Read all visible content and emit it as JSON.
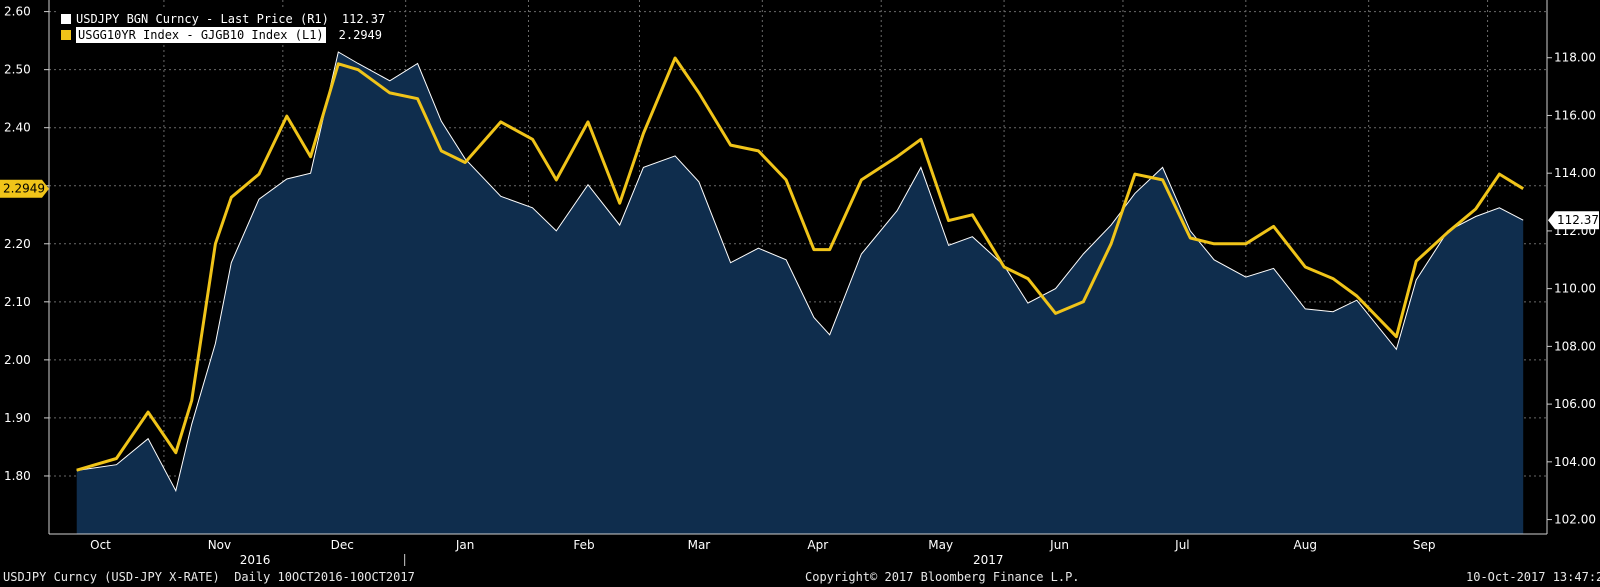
{
  "legend": {
    "items": [
      {
        "label": "USDJPY BGN Curncy - Last Price (R1)",
        "value": "112.37",
        "color": "#ffffff"
      },
      {
        "label": "USGG10YR Index - GJGB10 Index (L1)",
        "value": "2.2949",
        "color": "#f0c419"
      }
    ]
  },
  "footer": {
    "left": "USDJPY Curncy (USD-JPY X-RATE)  Daily 10OCT2016-10OCT2017",
    "center": "Copyright© 2017 Bloomberg Finance L.P.",
    "right": "10-Oct-2017 13:47:20"
  },
  "chart_data": {
    "type": "line",
    "x_axis": {
      "months": [
        "Oct",
        "Nov",
        "Dec",
        "Jan",
        "Feb",
        "Mar",
        "Apr",
        "May",
        "Jun",
        "Jul",
        "Aug",
        "Sep"
      ],
      "years": [
        "2016",
        "2017"
      ]
    },
    "y_left": {
      "ticks": [
        "1.80",
        "1.90",
        "2.00",
        "2.10",
        "2.20",
        "2.30",
        "2.40",
        "2.50",
        "2.60"
      ],
      "range": [
        1.7,
        2.62
      ]
    },
    "y_right": {
      "ticks": [
        "102.00",
        "104.00",
        "106.00",
        "108.00",
        "110.00",
        "112.00",
        "114.00",
        "116.00",
        "118.00"
      ],
      "range": [
        101.5,
        120
      ]
    },
    "left_marker": "2.2949",
    "right_marker": "112.37",
    "colors": {
      "usdjpy_line": "#ffffff",
      "usdjpy_fill": "#0f2d4d",
      "spread_line": "#f0c419",
      "grid": "#6a6a6a",
      "marker_right_bg": "#ffffff",
      "marker_left_bg": "#f0c419"
    },
    "series": [
      {
        "name": "USDJPY BGN Curncy - Last Price (R1)",
        "axis": "right",
        "points": [
          [
            "2016-10-10",
            103.7
          ],
          [
            "2016-10-20",
            103.9
          ],
          [
            "2016-10-28",
            104.8
          ],
          [
            "2016-11-04",
            103.0
          ],
          [
            "2016-11-08",
            105.3
          ],
          [
            "2016-11-14",
            108.1
          ],
          [
            "2016-11-18",
            110.9
          ],
          [
            "2016-11-25",
            113.1
          ],
          [
            "2016-12-02",
            113.8
          ],
          [
            "2016-12-08",
            114.0
          ],
          [
            "2016-12-15",
            118.2
          ],
          [
            "2016-12-20",
            117.8
          ],
          [
            "2016-12-28",
            117.2
          ],
          [
            "2017-01-04",
            117.8
          ],
          [
            "2017-01-10",
            115.8
          ],
          [
            "2017-01-16",
            114.5
          ],
          [
            "2017-01-25",
            113.2
          ],
          [
            "2017-02-02",
            112.8
          ],
          [
            "2017-02-08",
            112.0
          ],
          [
            "2017-02-16",
            113.6
          ],
          [
            "2017-02-24",
            112.2
          ],
          [
            "2017-03-02",
            114.2
          ],
          [
            "2017-03-10",
            114.6
          ],
          [
            "2017-03-16",
            113.7
          ],
          [
            "2017-03-24",
            110.9
          ],
          [
            "2017-03-31",
            111.4
          ],
          [
            "2017-04-07",
            111.0
          ],
          [
            "2017-04-14",
            109.0
          ],
          [
            "2017-04-18",
            108.4
          ],
          [
            "2017-04-26",
            111.2
          ],
          [
            "2017-05-05",
            112.7
          ],
          [
            "2017-05-11",
            114.2
          ],
          [
            "2017-05-18",
            111.5
          ],
          [
            "2017-05-24",
            111.8
          ],
          [
            "2017-06-01",
            110.8
          ],
          [
            "2017-06-07",
            109.5
          ],
          [
            "2017-06-14",
            110.0
          ],
          [
            "2017-06-21",
            111.2
          ],
          [
            "2017-06-28",
            112.2
          ],
          [
            "2017-07-04",
            113.3
          ],
          [
            "2017-07-11",
            114.2
          ],
          [
            "2017-07-18",
            112.0
          ],
          [
            "2017-07-24",
            111.0
          ],
          [
            "2017-08-01",
            110.4
          ],
          [
            "2017-08-08",
            110.7
          ],
          [
            "2017-08-16",
            109.3
          ],
          [
            "2017-08-23",
            109.2
          ],
          [
            "2017-08-29",
            109.6
          ],
          [
            "2017-09-08",
            107.9
          ],
          [
            "2017-09-13",
            110.3
          ],
          [
            "2017-09-21",
            112.0
          ],
          [
            "2017-09-28",
            112.5
          ],
          [
            "2017-10-04",
            112.8
          ],
          [
            "2017-10-10",
            112.37
          ]
        ]
      },
      {
        "name": "USGG10YR Index - GJGB10 Index (L1)",
        "axis": "left",
        "points": [
          [
            "2016-10-10",
            1.81
          ],
          [
            "2016-10-20",
            1.83
          ],
          [
            "2016-10-28",
            1.91
          ],
          [
            "2016-11-04",
            1.84
          ],
          [
            "2016-11-08",
            1.93
          ],
          [
            "2016-11-14",
            2.2
          ],
          [
            "2016-11-18",
            2.28
          ],
          [
            "2016-11-25",
            2.32
          ],
          [
            "2016-12-02",
            2.42
          ],
          [
            "2016-12-08",
            2.35
          ],
          [
            "2016-12-15",
            2.51
          ],
          [
            "2016-12-20",
            2.5
          ],
          [
            "2016-12-28",
            2.46
          ],
          [
            "2017-01-04",
            2.45
          ],
          [
            "2017-01-10",
            2.36
          ],
          [
            "2017-01-16",
            2.34
          ],
          [
            "2017-01-25",
            2.41
          ],
          [
            "2017-02-02",
            2.38
          ],
          [
            "2017-02-08",
            2.31
          ],
          [
            "2017-02-16",
            2.41
          ],
          [
            "2017-02-24",
            2.27
          ],
          [
            "2017-03-02",
            2.39
          ],
          [
            "2017-03-10",
            2.52
          ],
          [
            "2017-03-16",
            2.46
          ],
          [
            "2017-03-24",
            2.37
          ],
          [
            "2017-03-31",
            2.36
          ],
          [
            "2017-04-07",
            2.31
          ],
          [
            "2017-04-14",
            2.19
          ],
          [
            "2017-04-18",
            2.19
          ],
          [
            "2017-04-26",
            2.31
          ],
          [
            "2017-05-05",
            2.35
          ],
          [
            "2017-05-11",
            2.38
          ],
          [
            "2017-05-18",
            2.24
          ],
          [
            "2017-05-24",
            2.25
          ],
          [
            "2017-06-01",
            2.16
          ],
          [
            "2017-06-07",
            2.14
          ],
          [
            "2017-06-14",
            2.08
          ],
          [
            "2017-06-21",
            2.1
          ],
          [
            "2017-06-28",
            2.2
          ],
          [
            "2017-07-04",
            2.32
          ],
          [
            "2017-07-11",
            2.31
          ],
          [
            "2017-07-18",
            2.21
          ],
          [
            "2017-07-24",
            2.2
          ],
          [
            "2017-08-01",
            2.2
          ],
          [
            "2017-08-08",
            2.23
          ],
          [
            "2017-08-16",
            2.16
          ],
          [
            "2017-08-23",
            2.14
          ],
          [
            "2017-08-29",
            2.11
          ],
          [
            "2017-09-08",
            2.04
          ],
          [
            "2017-09-13",
            2.17
          ],
          [
            "2017-09-21",
            2.22
          ],
          [
            "2017-09-28",
            2.26
          ],
          [
            "2017-10-04",
            2.32
          ],
          [
            "2017-10-10",
            2.2949
          ]
        ]
      }
    ]
  }
}
